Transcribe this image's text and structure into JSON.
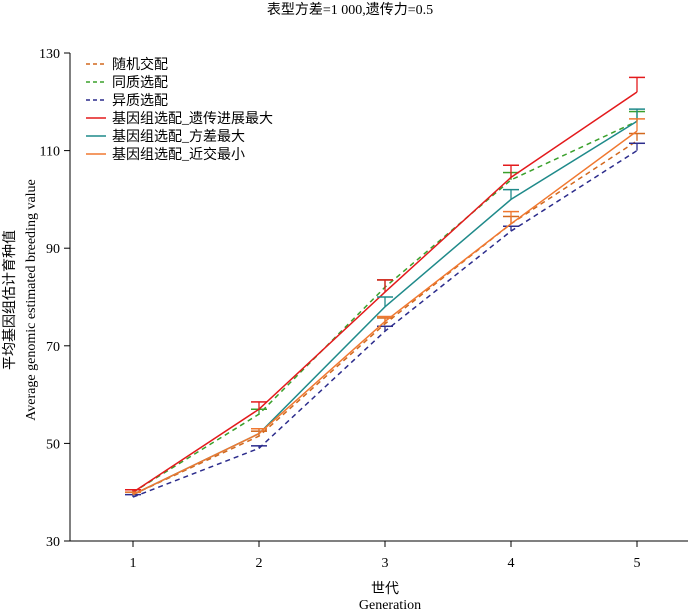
{
  "chart_data": {
    "type": "line",
    "title": "表型方差=1 000,遗传力=0.5",
    "xlabel_cn": "世代",
    "xlabel_en": "Generation",
    "ylabel_cn": "平均基因组估计育种值",
    "ylabel_en": "Average genomic estimated breeding value",
    "x": [
      1,
      2,
      3,
      4,
      5
    ],
    "ylim": [
      30,
      130
    ],
    "yticks": [
      30,
      50,
      70,
      90,
      110,
      130
    ],
    "grid": false,
    "legend_position": "top-left",
    "series": [
      {
        "name": "随机交配",
        "color": "#d2691e",
        "dash": true,
        "values": [
          39.5,
          51.5,
          74.5,
          95.0,
          112.0
        ],
        "errors": [
          0.5,
          1.0,
          1.2,
          1.5,
          1.5
        ]
      },
      {
        "name": "同质选配",
        "color": "#3aa02c",
        "dash": true,
        "values": [
          40.0,
          56.0,
          82.0,
          104.0,
          116.0
        ],
        "errors": [
          0.5,
          1.0,
          1.5,
          1.5,
          2.0
        ]
      },
      {
        "name": "异质选配",
        "color": "#2c2c8c",
        "dash": true,
        "values": [
          39.0,
          49.0,
          73.0,
          93.5,
          110.0
        ],
        "errors": [
          0.5,
          0.5,
          1.0,
          1.0,
          1.5
        ]
      },
      {
        "name": "基因组选配_遗传进展最大",
        "color": "#e31a1c",
        "dash": false,
        "values": [
          40.0,
          57.0,
          81.0,
          104.5,
          122.0
        ],
        "errors": [
          0.5,
          1.5,
          2.5,
          2.5,
          3.0
        ]
      },
      {
        "name": "基因组选配_方差最大",
        "color": "#1f8a8a",
        "dash": false,
        "values": [
          39.5,
          52.0,
          78.0,
          100.0,
          116.0
        ],
        "errors": [
          0.5,
          1.0,
          2.0,
          2.0,
          2.5
        ]
      },
      {
        "name": "基因组选配_近交最小",
        "color": "#f07830",
        "dash": false,
        "values": [
          39.5,
          52.0,
          75.0,
          95.0,
          114.0
        ],
        "errors": [
          0.5,
          1.0,
          1.0,
          2.5,
          2.5
        ]
      }
    ]
  }
}
